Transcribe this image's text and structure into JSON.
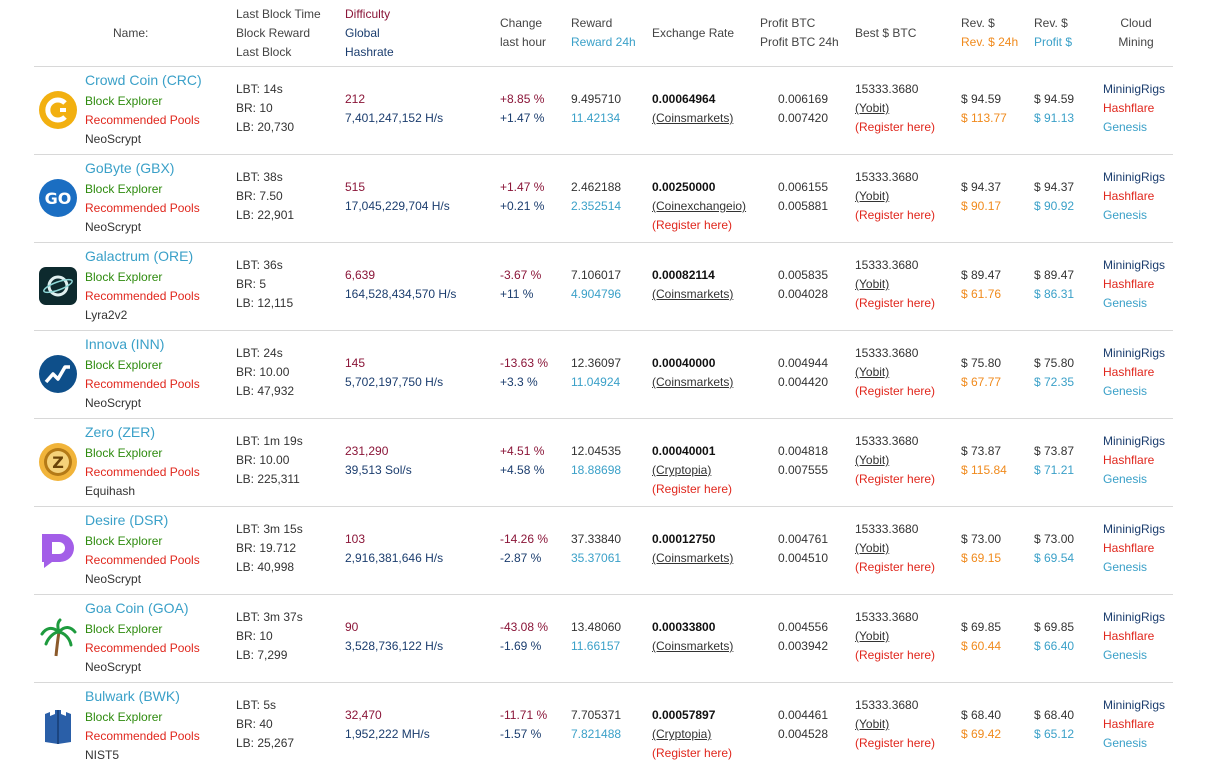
{
  "header": {
    "name": "Name:",
    "block": [
      "Last Block Time",
      "Block Reward",
      "Last Block"
    ],
    "difficulty": "Difficulty",
    "global": "Global",
    "hashrate": "Hashrate",
    "change": [
      "Change",
      "last hour"
    ],
    "reward": "Reward",
    "reward24": "Reward 24h",
    "exchange": "Exchange Rate",
    "profit": "Profit BTC",
    "profit24": "Profit BTC 24h",
    "best": "Best $ BTC",
    "rev": "Rev. $",
    "rev24": "Rev. $ 24h",
    "rev2": "Rev. $",
    "profit_usd": "Profit $",
    "cloud": [
      "Cloud",
      "Mining"
    ]
  },
  "links": {
    "explorer": "Block Explorer",
    "pools": "Recommended Pools",
    "register": "(Register here)",
    "cloud1": "MininigRigs",
    "cloud2": "Hashflare",
    "cloud3": "Genesis"
  },
  "colors": {
    "maroon": "#8a1538",
    "blue": "#3aa0c8",
    "green": "#2e8b0e",
    "red": "#e0271d",
    "orange": "#f08a1c"
  },
  "coins": [
    {
      "name": "Crowd Coin (CRC)",
      "logo": "crowdcoin-logo",
      "algo": "NeoScrypt",
      "lbt": "LBT: 14s",
      "br": "BR: 10",
      "lb": "LB: 20,730",
      "difficulty": "212",
      "hashrate": "7,401,247,152 H/s",
      "change1": "+8.85 %",
      "change2": "+1.47 %",
      "reward": "9.495710",
      "reward24": "11.42134",
      "rate": "0.00064964",
      "exchange": "(Coinsmarkets)",
      "register": false,
      "profit": "0.006169",
      "profit24": "0.007420",
      "best": "15333.3680",
      "best_ex": "(Yobit)",
      "rev": "$ 94.59",
      "rev24": "$ 113.77",
      "rev2": "$ 94.59",
      "profit_usd": "$ 91.13"
    },
    {
      "name": "GoByte (GBX)",
      "logo": "gobyte-logo",
      "algo": "NeoScrypt",
      "lbt": "LBT: 38s",
      "br": "BR: 7.50",
      "lb": "LB: 22,901",
      "difficulty": "515",
      "hashrate": "17,045,229,704 H/s",
      "change1": "+1.47 %",
      "change2": "+0.21 %",
      "reward": "2.462188",
      "reward24": "2.352514",
      "rate": "0.00250000",
      "exchange": "(Coinexchangeio)",
      "register": true,
      "profit": "0.006155",
      "profit24": "0.005881",
      "best": "15333.3680",
      "best_ex": "(Yobit)",
      "rev": "$ 94.37",
      "rev24": "$ 90.17",
      "rev2": "$ 94.37",
      "profit_usd": "$ 90.92"
    },
    {
      "name": "Galactrum (ORE)",
      "logo": "galactrum-logo",
      "algo": "Lyra2v2",
      "lbt": "LBT: 36s",
      "br": "BR: 5",
      "lb": "LB: 12,115",
      "difficulty": "6,639",
      "hashrate": "164,528,434,570 H/s",
      "change1": "-3.67 %",
      "change2": "+11 %",
      "reward": "7.106017",
      "reward24": "4.904796",
      "rate": "0.00082114",
      "exchange": "(Coinsmarkets)",
      "register": false,
      "profit": "0.005835",
      "profit24": "0.004028",
      "best": "15333.3680",
      "best_ex": "(Yobit)",
      "rev": "$ 89.47",
      "rev24": "$ 61.76",
      "rev2": "$ 89.47",
      "profit_usd": "$ 86.31"
    },
    {
      "name": "Innova (INN)",
      "logo": "innova-logo",
      "algo": "NeoScrypt",
      "lbt": "LBT: 24s",
      "br": "BR: 10.00",
      "lb": "LB: 47,932",
      "difficulty": "145",
      "hashrate": "5,702,197,750 H/s",
      "change1": "-13.63 %",
      "change2": "+3.3 %",
      "reward": "12.36097",
      "reward24": "11.04924",
      "rate": "0.00040000",
      "exchange": "(Coinsmarkets)",
      "register": false,
      "profit": "0.004944",
      "profit24": "0.004420",
      "best": "15333.3680",
      "best_ex": "(Yobit)",
      "rev": "$ 75.80",
      "rev24": "$ 67.77",
      "rev2": "$ 75.80",
      "profit_usd": "$ 72.35"
    },
    {
      "name": "Zero (ZER)",
      "logo": "zero-logo",
      "algo": "Equihash",
      "lbt": "LBT: 1m 19s",
      "br": "BR: 10.00",
      "lb": "LB: 225,311",
      "difficulty": "231,290",
      "hashrate": "39,513 Sol/s",
      "change1": "+4.51 %",
      "change2": "+4.58 %",
      "reward": "12.04535",
      "reward24": "18.88698",
      "rate": "0.00040001",
      "exchange": "(Cryptopia)",
      "register": true,
      "profit": "0.004818",
      "profit24": "0.007555",
      "best": "15333.3680",
      "best_ex": "(Yobit)",
      "rev": "$ 73.87",
      "rev24": "$ 115.84",
      "rev2": "$ 73.87",
      "profit_usd": "$ 71.21"
    },
    {
      "name": "Desire (DSR)",
      "logo": "desire-logo",
      "algo": "NeoScrypt",
      "lbt": "LBT: 3m 15s",
      "br": "BR: 19.712",
      "lb": "LB: 40,998",
      "difficulty": "103",
      "hashrate": "2,916,381,646 H/s",
      "change1": "-14.26 %",
      "change2": "-2.87 %",
      "reward": "37.33840",
      "reward24": "35.37061",
      "rate": "0.00012750",
      "exchange": "(Coinsmarkets)",
      "register": false,
      "profit": "0.004761",
      "profit24": "0.004510",
      "best": "15333.3680",
      "best_ex": "(Yobit)",
      "rev": "$ 73.00",
      "rev24": "$ 69.15",
      "rev2": "$ 73.00",
      "profit_usd": "$ 69.54"
    },
    {
      "name": "Goa Coin (GOA)",
      "logo": "goacoin-logo",
      "algo": "NeoScrypt",
      "lbt": "LBT: 3m 37s",
      "br": "BR: 10",
      "lb": "LB: 7,299",
      "difficulty": "90",
      "hashrate": "3,528,736,122 H/s",
      "change1": "-43.08 %",
      "change2": "-1.69 %",
      "reward": "13.48060",
      "reward24": "11.66157",
      "rate": "0.00033800",
      "exchange": "(Coinsmarkets)",
      "register": false,
      "profit": "0.004556",
      "profit24": "0.003942",
      "best": "15333.3680",
      "best_ex": "(Yobit)",
      "rev": "$ 69.85",
      "rev24": "$ 60.44",
      "rev2": "$ 69.85",
      "profit_usd": "$ 66.40"
    },
    {
      "name": "Bulwark (BWK)",
      "logo": "bulwark-logo",
      "algo": "NIST5",
      "lbt": "LBT: 5s",
      "br": "BR: 40",
      "lb": "LB: 25,267",
      "difficulty": "32,470",
      "hashrate": "1,952,222 MH/s",
      "change1": "-11.71 %",
      "change2": "-1.57 %",
      "reward": "7.705371",
      "reward24": "7.821488",
      "rate": "0.00057897",
      "exchange": "(Cryptopia)",
      "register": true,
      "profit": "0.004461",
      "profit24": "0.004528",
      "best": "15333.3680",
      "best_ex": "(Yobit)",
      "rev": "$ 68.40",
      "rev24": "$ 69.42",
      "rev2": "$ 68.40",
      "profit_usd": "$ 65.12"
    }
  ]
}
